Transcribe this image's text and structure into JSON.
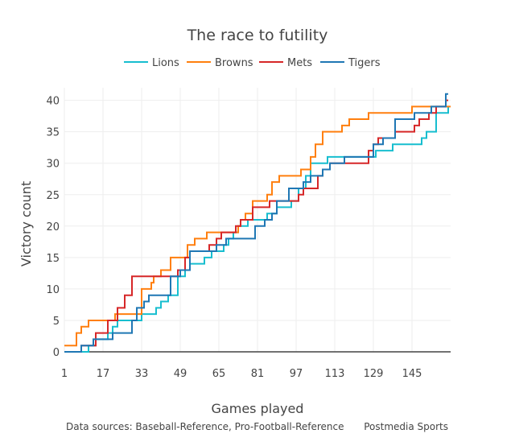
{
  "chart_data": {
    "type": "line",
    "line_shape": "step",
    "title": "The race to futility",
    "xlabel": "Games played",
    "ylabel": "Victory count",
    "xlim": [
      1,
      161
    ],
    "ylim": [
      0,
      42
    ],
    "x_ticks": [
      1,
      17,
      33,
      49,
      65,
      81,
      97,
      113,
      129,
      145
    ],
    "y_ticks": [
      0,
      5,
      10,
      15,
      20,
      25,
      30,
      35,
      40
    ],
    "grid": true,
    "legend_position": "top-center",
    "series": [
      {
        "name": "Lions",
        "color": "#17becf",
        "points": [
          [
            1,
            0
          ],
          [
            11,
            1
          ],
          [
            14,
            2
          ],
          [
            19,
            3
          ],
          [
            21,
            4
          ],
          [
            23,
            5
          ],
          [
            33,
            6
          ],
          [
            39,
            7
          ],
          [
            41,
            8
          ],
          [
            44,
            9
          ],
          [
            48,
            12
          ],
          [
            51,
            13
          ],
          [
            53,
            14
          ],
          [
            59,
            15
          ],
          [
            62,
            16
          ],
          [
            67,
            17
          ],
          [
            69,
            18
          ],
          [
            71,
            19
          ],
          [
            73,
            20
          ],
          [
            77,
            21
          ],
          [
            85,
            22
          ],
          [
            89,
            23
          ],
          [
            95,
            24
          ],
          [
            98,
            26
          ],
          [
            101,
            28
          ],
          [
            103,
            30
          ],
          [
            110,
            31
          ],
          [
            130,
            32
          ],
          [
            137,
            33
          ],
          [
            149,
            34
          ],
          [
            151,
            35
          ],
          [
            155,
            38
          ],
          [
            160,
            39
          ]
        ]
      },
      {
        "name": "Browns",
        "color": "#ff7f0e",
        "points": [
          [
            1,
            1
          ],
          [
            6,
            3
          ],
          [
            8,
            4
          ],
          [
            11,
            5
          ],
          [
            22,
            6
          ],
          [
            33,
            10
          ],
          [
            37,
            11
          ],
          [
            38,
            12
          ],
          [
            41,
            13
          ],
          [
            45,
            15
          ],
          [
            52,
            17
          ],
          [
            55,
            18
          ],
          [
            60,
            19
          ],
          [
            73,
            20
          ],
          [
            74,
            21
          ],
          [
            76,
            22
          ],
          [
            79,
            24
          ],
          [
            85,
            25
          ],
          [
            87,
            27
          ],
          [
            90,
            28
          ],
          [
            99,
            29
          ],
          [
            103,
            31
          ],
          [
            105,
            33
          ],
          [
            108,
            35
          ],
          [
            116,
            36
          ],
          [
            119,
            37
          ],
          [
            127,
            38
          ],
          [
            145,
            39
          ],
          [
            161,
            39
          ]
        ]
      },
      {
        "name": "Mets",
        "color": "#d62728",
        "points": [
          [
            1,
            0
          ],
          [
            8,
            1
          ],
          [
            14,
            3
          ],
          [
            19,
            5
          ],
          [
            23,
            7
          ],
          [
            26,
            9
          ],
          [
            29,
            12
          ],
          [
            48,
            13
          ],
          [
            51,
            15
          ],
          [
            53,
            16
          ],
          [
            61,
            17
          ],
          [
            64,
            18
          ],
          [
            66,
            19
          ],
          [
            72,
            20
          ],
          [
            74,
            21
          ],
          [
            79,
            23
          ],
          [
            86,
            24
          ],
          [
            98,
            25
          ],
          [
            100,
            26
          ],
          [
            106,
            28
          ],
          [
            108,
            29
          ],
          [
            111,
            30
          ],
          [
            127,
            32
          ],
          [
            129,
            33
          ],
          [
            131,
            34
          ],
          [
            138,
            35
          ],
          [
            146,
            36
          ],
          [
            148,
            37
          ],
          [
            152,
            38
          ],
          [
            155,
            39
          ],
          [
            159,
            40
          ],
          [
            160,
            40
          ]
        ]
      },
      {
        "name": "Tigers",
        "color": "#1f77b4",
        "points": [
          [
            1,
            0
          ],
          [
            8,
            1
          ],
          [
            13,
            2
          ],
          [
            21,
            3
          ],
          [
            29,
            5
          ],
          [
            31,
            7
          ],
          [
            34,
            8
          ],
          [
            36,
            9
          ],
          [
            45,
            12
          ],
          [
            49,
            13
          ],
          [
            53,
            16
          ],
          [
            64,
            17
          ],
          [
            68,
            18
          ],
          [
            80,
            20
          ],
          [
            84,
            21
          ],
          [
            87,
            22
          ],
          [
            89,
            24
          ],
          [
            94,
            26
          ],
          [
            100,
            27
          ],
          [
            103,
            28
          ],
          [
            108,
            29
          ],
          [
            111,
            30
          ],
          [
            117,
            31
          ],
          [
            129,
            33
          ],
          [
            133,
            34
          ],
          [
            138,
            37
          ],
          [
            146,
            38
          ],
          [
            153,
            39
          ],
          [
            159,
            41
          ],
          [
            160,
            41
          ]
        ]
      }
    ]
  },
  "footer": {
    "sources": "Data sources: Baseball-Reference, Pro-Football-Reference",
    "credit": "Postmedia Sports"
  }
}
